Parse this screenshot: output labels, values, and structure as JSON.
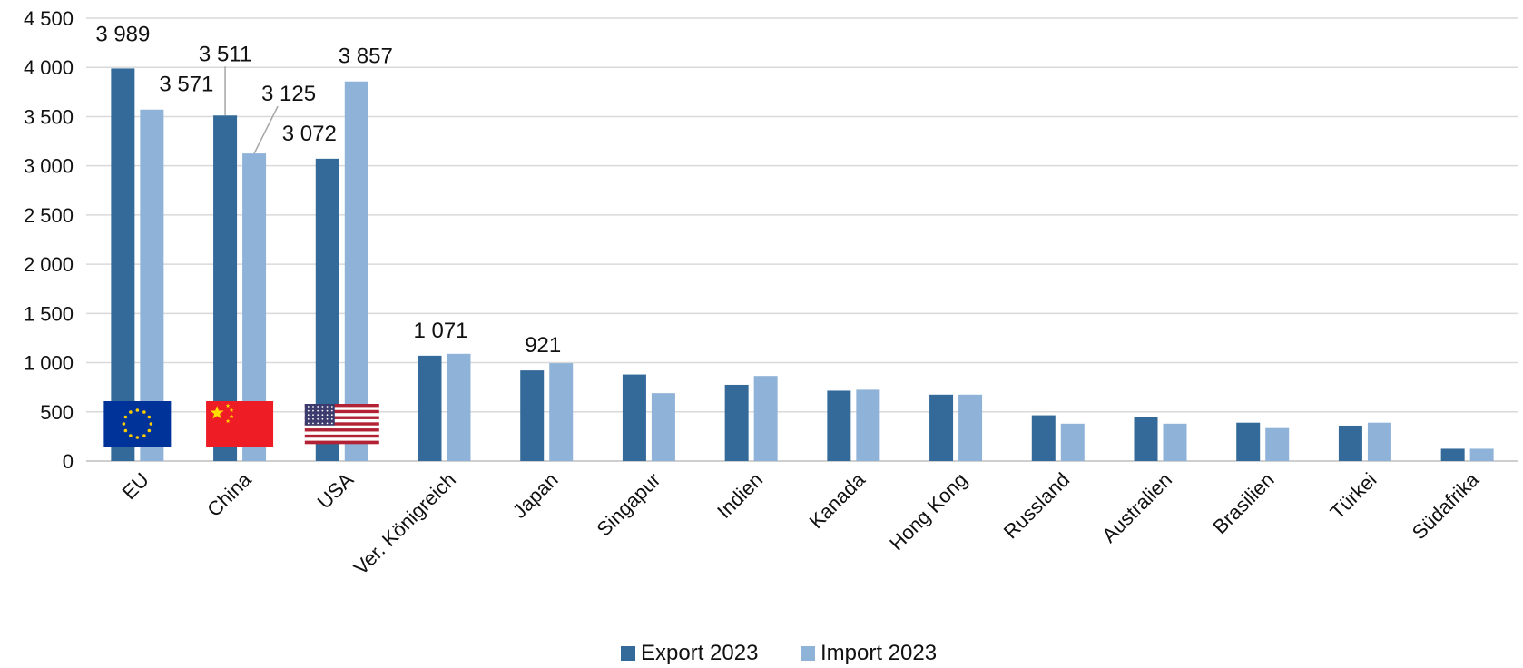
{
  "chart_data": {
    "type": "bar",
    "categories": [
      "EU",
      "China",
      "USA",
      "Ver. Königreich",
      "Japan",
      "Singapur",
      "Indien",
      "Kanada",
      "Hong Kong",
      "Russland",
      "Australien",
      "Brasilien",
      "Türkei",
      "Südafrika"
    ],
    "series": [
      {
        "name": "Export 2023",
        "color": "#336a99",
        "values": [
          3989,
          3511,
          3072,
          1071,
          921,
          880,
          775,
          715,
          675,
          465,
          445,
          390,
          360,
          125
        ]
      },
      {
        "name": "Import 2023",
        "color": "#8fb3d8",
        "values": [
          3571,
          3125,
          3857,
          1090,
          995,
          690,
          865,
          725,
          675,
          380,
          380,
          335,
          390,
          125
        ]
      }
    ],
    "ylim": [
      0,
      4500
    ],
    "yticks": [
      0,
      500,
      1000,
      1500,
      2000,
      2500,
      3000,
      3500,
      4000,
      4500
    ],
    "ytick_labels": [
      "0",
      "500",
      "1 000",
      "1 500",
      "2 000",
      "2 500",
      "3 000",
      "3 500",
      "4 000",
      "4 500"
    ],
    "data_labels": [
      {
        "series": 0,
        "category": 0,
        "text": "3 989"
      },
      {
        "series": 1,
        "category": 0,
        "text": "3 571"
      },
      {
        "series": 0,
        "category": 1,
        "text": "3 511"
      },
      {
        "series": 1,
        "category": 1,
        "text": "3 125"
      },
      {
        "series": 0,
        "category": 2,
        "text": "3 072"
      },
      {
        "series": 1,
        "category": 2,
        "text": "3 857"
      },
      {
        "series": 0,
        "category": 3,
        "text": "1 071"
      },
      {
        "series": 0,
        "category": 4,
        "text": "921"
      }
    ],
    "flags": [
      {
        "category": 0,
        "icon": "eu-flag-icon"
      },
      {
        "category": 1,
        "icon": "china-flag-icon"
      },
      {
        "category": 2,
        "icon": "usa-flag-icon"
      }
    ],
    "grid": true,
    "legend_position": "bottom-center"
  }
}
